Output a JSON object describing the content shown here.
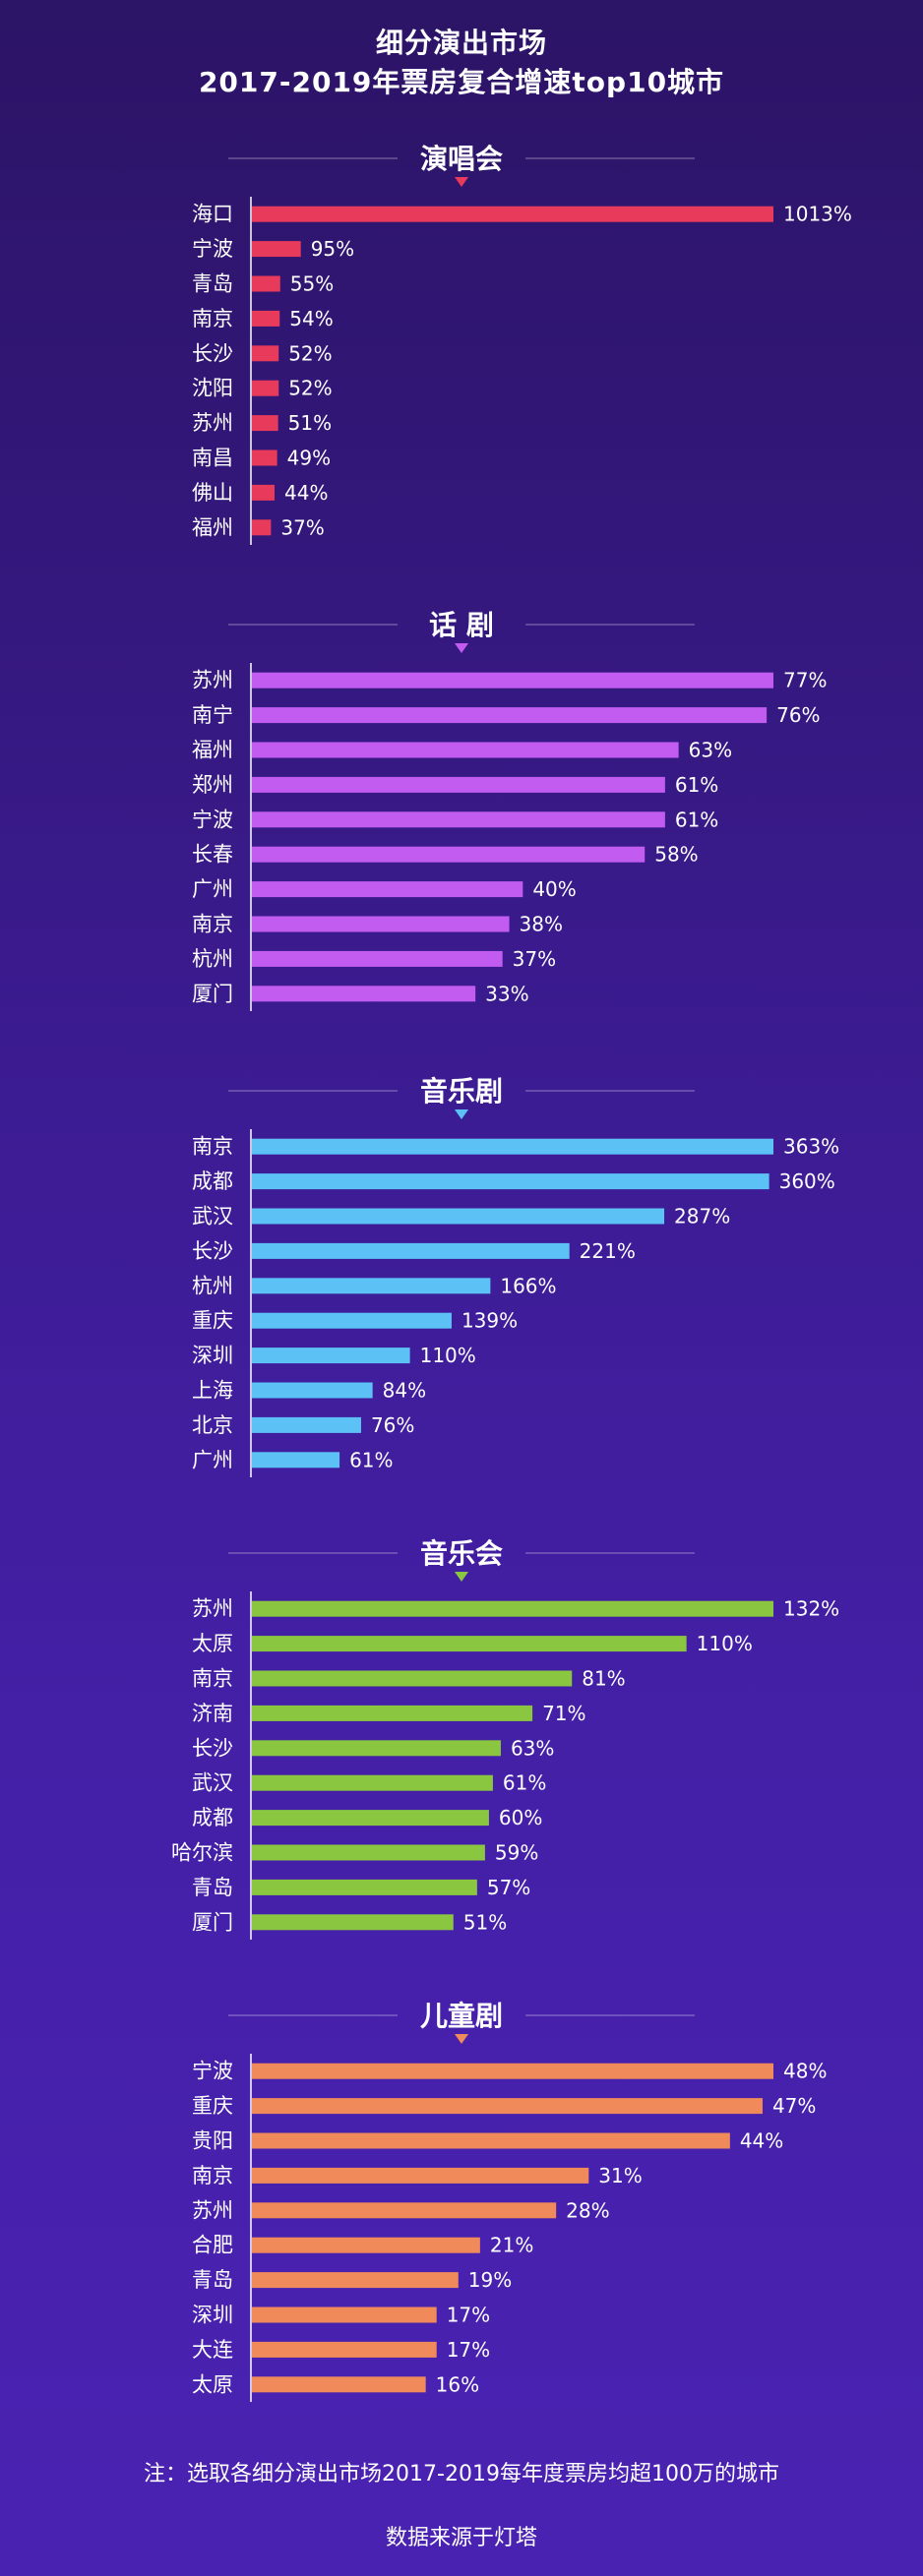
{
  "title": {
    "line1": "细分演出市场",
    "line2": "2017-2019年票房复合增速top10城市"
  },
  "chart_data": [
    {
      "type": "bar",
      "orientation": "horizontal",
      "title": "演唱会",
      "color": "#e83a5a",
      "categories": [
        "海口",
        "宁波",
        "青岛",
        "南京",
        "长沙",
        "沈阳",
        "苏州",
        "南昌",
        "佛山",
        "福州"
      ],
      "values": [
        1013,
        95,
        55,
        54,
        52,
        52,
        51,
        49,
        44,
        37
      ],
      "value_labels": [
        "1013%",
        "95%",
        "55%",
        "54%",
        "52%",
        "52%",
        "51%",
        "49%",
        "44%",
        "37%"
      ],
      "unit": "%",
      "xlim": [
        0,
        1013
      ]
    },
    {
      "type": "bar",
      "orientation": "horizontal",
      "title": "话 剧",
      "color": "#c25cf0",
      "categories": [
        "苏州",
        "南宁",
        "福州",
        "郑州",
        "宁波",
        "长春",
        "广州",
        "南京",
        "杭州",
        "厦门"
      ],
      "values": [
        77,
        76,
        63,
        61,
        61,
        58,
        40,
        38,
        37,
        33
      ],
      "value_labels": [
        "77%",
        "76%",
        "63%",
        "61%",
        "61%",
        "58%",
        "40%",
        "38%",
        "37%",
        "33%"
      ],
      "unit": "%",
      "xlim": [
        0,
        77
      ]
    },
    {
      "type": "bar",
      "orientation": "horizontal",
      "title": "音乐剧",
      "color": "#5cc1f5",
      "categories": [
        "南京",
        "成都",
        "武汉",
        "长沙",
        "杭州",
        "重庆",
        "深圳",
        "上海",
        "北京",
        "广州"
      ],
      "values": [
        363,
        360,
        287,
        221,
        166,
        139,
        110,
        84,
        76,
        61
      ],
      "value_labels": [
        "363%",
        "360%",
        "287%",
        "221%",
        "166%",
        "139%",
        "110%",
        "84%",
        "76%",
        "61%"
      ],
      "unit": "%",
      "xlim": [
        0,
        363
      ]
    },
    {
      "type": "bar",
      "orientation": "horizontal",
      "title": "音乐会",
      "color": "#8ac640",
      "categories": [
        "苏州",
        "太原",
        "南京",
        "济南",
        "长沙",
        "武汉",
        "成都",
        "哈尔滨",
        "青岛",
        "厦门"
      ],
      "values": [
        132,
        110,
        81,
        71,
        63,
        61,
        60,
        59,
        57,
        51
      ],
      "value_labels": [
        "132%",
        "110%",
        "81%",
        "71%",
        "63%",
        "61%",
        "60%",
        "59%",
        "57%",
        "51%"
      ],
      "unit": "%",
      "xlim": [
        0,
        132
      ]
    },
    {
      "type": "bar",
      "orientation": "horizontal",
      "title": "儿童剧",
      "color": "#f08a5a",
      "categories": [
        "宁波",
        "重庆",
        "贵阳",
        "南京",
        "苏州",
        "合肥",
        "青岛",
        "深圳",
        "大连",
        "太原"
      ],
      "values": [
        48,
        47,
        44,
        31,
        28,
        21,
        19,
        17,
        17,
        16
      ],
      "value_labels": [
        "48%",
        "47%",
        "44%",
        "31%",
        "28%",
        "21%",
        "19%",
        "17%",
        "17%",
        "16%"
      ],
      "unit": "%",
      "xlim": [
        0,
        48
      ]
    }
  ],
  "footnote": {
    "note": "注：选取各细分演出市场2017-2019每年度票房均超100万的城市",
    "source": "数据来源于灯塔"
  }
}
